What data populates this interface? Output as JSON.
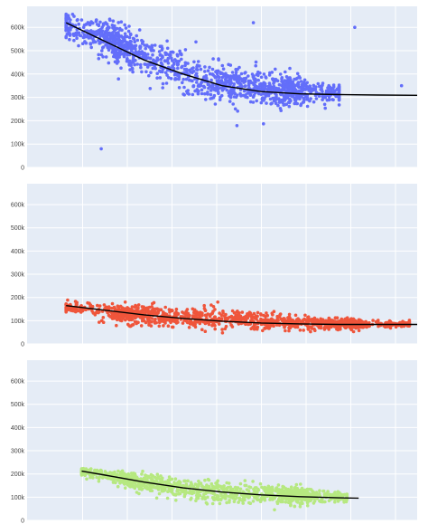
{
  "chart_data": [
    {
      "type": "scatter",
      "title": "",
      "xlabel": "",
      "ylabel": "",
      "ylim": [
        0,
        690000
      ],
      "xlim": [
        0,
        100
      ],
      "yticks": [
        0,
        100000,
        200000,
        300000,
        400000,
        500000,
        600000
      ],
      "ytick_labels": [
        "0",
        "100k",
        "200k",
        "300k",
        "400k",
        "500k",
        "600k"
      ],
      "grid": true,
      "series": [
        {
          "color": "#636efa",
          "n_points": 1350,
          "point_summary": [
            {
              "x": 10,
              "y": 610000,
              "spread": 40000
            },
            {
              "x": 20,
              "y": 560000,
              "spread": 60000
            },
            {
              "x": 30,
              "y": 480000,
              "spread": 70000
            },
            {
              "x": 40,
              "y": 410000,
              "spread": 70000
            },
            {
              "x": 50,
              "y": 360000,
              "spread": 70000
            },
            {
              "x": 60,
              "y": 335000,
              "spread": 65000
            },
            {
              "x": 70,
              "y": 325000,
              "spread": 45000
            },
            {
              "x": 80,
              "y": 320000,
              "spread": 30000
            }
          ],
          "outliers": [
            {
              "x": 19,
              "y": 80000
            },
            {
              "x": 84,
              "y": 600000
            },
            {
              "x": 58,
              "y": 620000
            },
            {
              "x": 96,
              "y": 350000
            }
          ]
        },
        {
          "type": "line",
          "color": "#000000",
          "x": [
            10,
            20,
            30,
            40,
            50,
            60,
            70,
            80,
            90,
            100
          ],
          "y": [
            620000,
            540000,
            460000,
            400000,
            350000,
            325000,
            315000,
            312000,
            310000,
            309000
          ]
        }
      ]
    },
    {
      "type": "scatter",
      "title": "",
      "xlabel": "",
      "ylabel": "",
      "ylim": [
        0,
        690000
      ],
      "xlim": [
        0,
        100
      ],
      "yticks": [
        0,
        100000,
        200000,
        300000,
        400000,
        500000,
        600000
      ],
      "ytick_labels": [
        "0",
        "100k",
        "200k",
        "300k",
        "400k",
        "500k",
        "600k"
      ],
      "grid": true,
      "series": [
        {
          "color": "#ef553b",
          "n_points": 1300,
          "point_summary": [
            {
              "x": 10,
              "y": 160000,
              "spread": 20000
            },
            {
              "x": 25,
              "y": 130000,
              "spread": 30000
            },
            {
              "x": 40,
              "y": 110000,
              "spread": 35000
            },
            {
              "x": 55,
              "y": 100000,
              "spread": 35000
            },
            {
              "x": 70,
              "y": 90000,
              "spread": 25000
            },
            {
              "x": 85,
              "y": 85000,
              "spread": 15000
            },
            {
              "x": 98,
              "y": 85000,
              "spread": 10000
            }
          ]
        },
        {
          "type": "line",
          "color": "#000000",
          "x": [
            10,
            20,
            30,
            40,
            50,
            60,
            70,
            80,
            90,
            100
          ],
          "y": [
            165000,
            145000,
            125000,
            110000,
            98000,
            90000,
            86000,
            84000,
            84000,
            84000
          ]
        }
      ]
    },
    {
      "type": "scatter",
      "title": "",
      "xlabel": "",
      "ylabel": "",
      "ylim": [
        0,
        690000
      ],
      "xlim": [
        0,
        100
      ],
      "yticks": [
        0,
        100000,
        200000,
        300000,
        400000,
        500000,
        600000
      ],
      "ytick_labels": [
        "0",
        "100k",
        "200k",
        "300k",
        "400k",
        "500k",
        "600k"
      ],
      "grid": true,
      "series": [
        {
          "color": "#b6e880",
          "n_points": 1200,
          "point_summary": [
            {
              "x": 14,
              "y": 210000,
              "spread": 15000
            },
            {
              "x": 25,
              "y": 180000,
              "spread": 25000
            },
            {
              "x": 35,
              "y": 150000,
              "spread": 35000
            },
            {
              "x": 45,
              "y": 130000,
              "spread": 35000
            },
            {
              "x": 55,
              "y": 115000,
              "spread": 35000
            },
            {
              "x": 65,
              "y": 110000,
              "spread": 30000
            },
            {
              "x": 75,
              "y": 105000,
              "spread": 25000
            },
            {
              "x": 82,
              "y": 100000,
              "spread": 15000
            }
          ]
        },
        {
          "type": "line",
          "color": "#000000",
          "x": [
            14,
            20,
            30,
            40,
            50,
            60,
            70,
            80,
            85
          ],
          "y": [
            212000,
            195000,
            165000,
            140000,
            122000,
            110000,
            102000,
            97000,
            96000
          ]
        }
      ]
    }
  ],
  "colors": {
    "plot_bg": "#e5ecf6",
    "grid": "#ffffff",
    "axis_text": "#444444"
  }
}
